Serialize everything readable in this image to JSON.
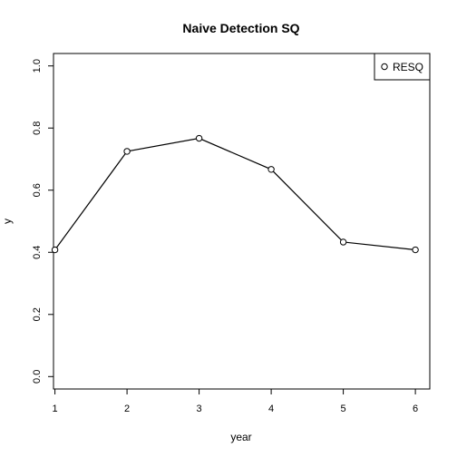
{
  "chart_data": {
    "type": "line",
    "title": "Naive Detection SQ",
    "xlabel": "year",
    "ylabel": "y",
    "x": [
      1,
      2,
      3,
      4,
      5,
      6
    ],
    "xticks": [
      "1",
      "2",
      "3",
      "4",
      "5",
      "6"
    ],
    "yticks": [
      "0.0",
      "0.2",
      "0.4",
      "0.6",
      "0.8",
      "1.0"
    ],
    "ytick_values": [
      0.0,
      0.2,
      0.4,
      0.6,
      0.8,
      1.0
    ],
    "xlim": [
      0.98,
      6.2
    ],
    "ylim": [
      -0.04,
      1.04
    ],
    "series": [
      {
        "name": "RESQ",
        "values": [
          0.408,
          0.725,
          0.767,
          0.667,
          0.433,
          0.408
        ],
        "color": "#000000",
        "marker": "open-circle"
      }
    ],
    "legend": {
      "position": "top-right"
    },
    "grid": false
  }
}
